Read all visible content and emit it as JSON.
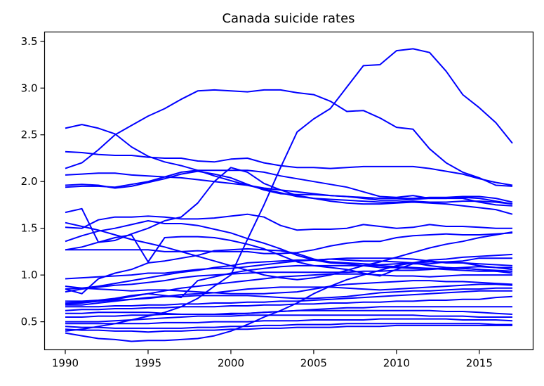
{
  "chart_data": {
    "type": "line",
    "title": "Canada suicide rates",
    "xlabel": "",
    "ylabel": "",
    "xlim": [
      1988.75,
      2018.25
    ],
    "ylim": [
      0.2,
      3.6
    ],
    "x_ticks": [
      1990,
      1995,
      2000,
      2005,
      2010,
      2015
    ],
    "y_ticks": [
      0.5,
      1.0,
      1.5,
      2.0,
      2.5,
      3.0,
      3.5
    ],
    "y_tick_labels": [
      "0.5",
      "1.0",
      "1.5",
      "2.0",
      "2.5",
      "3.0",
      "3.5"
    ],
    "grid": false,
    "line_color": "#0000ff",
    "x": [
      1990,
      1991,
      1992,
      1993,
      1994,
      1995,
      1996,
      1997,
      1998,
      1999,
      2000,
      2001,
      2002,
      2003,
      2004,
      2005,
      2006,
      2007,
      2008,
      2009,
      2010,
      2011,
      2012,
      2013,
      2014,
      2015,
      2016,
      2017
    ],
    "series": [
      {
        "values": [
          2.14,
          2.2,
          2.34,
          2.5,
          2.6,
          2.7,
          2.78,
          2.88,
          2.97,
          2.98,
          2.97,
          2.96,
          2.98,
          2.98,
          2.95,
          2.93,
          2.86,
          2.75,
          2.76,
          2.68,
          2.58,
          2.56,
          2.35,
          2.2,
          2.1,
          2.04,
          1.96,
          1.95
        ]
      },
      {
        "values": [
          0.4,
          0.42,
          0.45,
          0.48,
          0.52,
          0.56,
          0.6,
          0.66,
          0.75,
          0.88,
          1.0,
          1.38,
          1.75,
          2.15,
          2.53,
          2.67,
          2.78,
          3.01,
          3.24,
          3.25,
          3.4,
          3.42,
          3.38,
          3.18,
          2.93,
          2.79,
          2.63,
          2.41
        ]
      },
      {
        "values": [
          2.57,
          2.61,
          2.57,
          2.51,
          2.37,
          2.27,
          2.21,
          2.17,
          2.12,
          2.06,
          2.01,
          1.96,
          1.92,
          1.88,
          1.84,
          1.82,
          1.79,
          1.77,
          1.76,
          1.76,
          1.77,
          1.78,
          1.77,
          1.76,
          1.74,
          1.72,
          1.7,
          1.65
        ]
      },
      {
        "values": [
          2.32,
          2.31,
          2.29,
          2.28,
          2.28,
          2.26,
          2.25,
          2.25,
          2.22,
          2.21,
          2.24,
          2.25,
          2.2,
          2.17,
          2.15,
          2.15,
          2.14,
          2.15,
          2.16,
          2.16,
          2.16,
          2.16,
          2.14,
          2.11,
          2.08,
          2.03,
          1.99,
          1.96
        ]
      },
      {
        "values": [
          2.07,
          2.08,
          2.09,
          2.09,
          2.07,
          2.06,
          2.05,
          2.04,
          2.02,
          2.0,
          1.98,
          1.96,
          1.93,
          1.91,
          1.89,
          1.87,
          1.85,
          1.84,
          1.83,
          1.82,
          1.82,
          1.82,
          1.83,
          1.83,
          1.84,
          1.84,
          1.82,
          1.78
        ]
      },
      {
        "values": [
          1.96,
          1.97,
          1.96,
          1.93,
          1.95,
          1.99,
          2.03,
          2.08,
          2.11,
          2.08,
          2.04,
          1.97,
          1.91,
          1.87,
          1.86,
          1.86,
          1.85,
          1.84,
          1.82,
          1.8,
          1.8,
          1.81,
          1.82,
          1.82,
          1.83,
          1.82,
          1.79,
          1.76
        ]
      },
      {
        "values": [
          1.94,
          1.95,
          1.95,
          1.94,
          1.97,
          2.0,
          2.05,
          2.1,
          2.12,
          2.12,
          2.12,
          2.12,
          2.1,
          2.06,
          2.03,
          2.0,
          1.97,
          1.94,
          1.89,
          1.84,
          1.83,
          1.85,
          1.82,
          1.82,
          1.82,
          1.78,
          1.75,
          1.74
        ]
      },
      {
        "values": [
          1.67,
          1.71,
          1.35,
          1.37,
          1.44,
          1.5,
          1.58,
          1.62,
          1.77,
          2.0,
          2.15,
          2.1,
          1.98,
          1.91,
          1.85,
          1.82,
          1.81,
          1.8,
          1.79,
          1.78,
          1.78,
          1.79,
          1.78,
          1.78,
          1.79,
          1.79,
          1.78,
          1.76
        ]
      },
      {
        "values": [
          1.51,
          1.5,
          1.59,
          1.62,
          1.62,
          1.63,
          1.62,
          1.6,
          1.6,
          1.61,
          1.63,
          1.65,
          1.62,
          1.53,
          1.48,
          1.49,
          1.49,
          1.5,
          1.54,
          1.52,
          1.5,
          1.51,
          1.54,
          1.52,
          1.52,
          1.51,
          1.5,
          1.5
        ]
      },
      {
        "values": [
          1.56,
          1.52,
          1.48,
          1.43,
          1.38,
          1.34,
          1.3,
          1.25,
          1.2,
          1.15,
          1.1,
          1.05,
          1.0,
          0.97,
          0.95,
          0.97,
          1.0,
          1.05,
          1.1,
          1.14,
          1.19,
          1.24,
          1.29,
          1.33,
          1.36,
          1.4,
          1.43,
          1.46
        ]
      },
      {
        "values": [
          1.27,
          1.27,
          1.27,
          1.27,
          1.27,
          1.27,
          1.25,
          1.25,
          1.26,
          1.25,
          1.25,
          1.25,
          1.23,
          1.23,
          1.24,
          1.27,
          1.31,
          1.34,
          1.36,
          1.36,
          1.4,
          1.42,
          1.43,
          1.44,
          1.43,
          1.43,
          1.44,
          1.45
        ]
      },
      {
        "values": [
          1.27,
          1.3,
          1.35,
          1.4,
          1.43,
          1.14,
          1.4,
          1.41,
          1.41,
          1.4,
          1.37,
          1.33,
          1.28,
          1.21,
          1.14,
          1.1,
          1.08,
          1.06,
          1.02,
          0.99,
          1.06,
          1.12,
          1.12,
          1.14,
          1.13,
          1.1,
          1.08,
          1.06
        ]
      },
      {
        "values": [
          1.36,
          1.42,
          1.47,
          1.5,
          1.54,
          1.58,
          1.55,
          1.55,
          1.53,
          1.49,
          1.45,
          1.39,
          1.34,
          1.28,
          1.21,
          1.16,
          1.13,
          1.12,
          1.1,
          1.08,
          1.08,
          1.07,
          1.07,
          1.07,
          1.08,
          1.09,
          1.08,
          1.08
        ]
      },
      {
        "values": [
          0.85,
          0.8,
          0.96,
          1.02,
          1.06,
          1.13,
          1.15,
          1.18,
          1.21,
          1.26,
          1.27,
          1.28,
          1.27,
          1.26,
          1.23,
          1.17,
          1.14,
          1.13,
          1.12,
          1.11,
          1.12,
          1.13,
          1.14,
          1.14,
          1.15,
          1.18,
          1.18,
          1.18
        ]
      },
      {
        "values": [
          0.96,
          0.97,
          0.98,
          0.99,
          1.0,
          1.02,
          1.02,
          1.04,
          1.06,
          1.07,
          1.07,
          1.09,
          1.11,
          1.13,
          1.15,
          1.16,
          1.17,
          1.18,
          1.18,
          1.18,
          1.18,
          1.17,
          1.15,
          1.13,
          1.13,
          1.12,
          1.11,
          1.1
        ]
      },
      {
        "values": [
          0.85,
          0.86,
          0.88,
          0.91,
          0.94,
          0.97,
          1.0,
          1.03,
          1.05,
          1.08,
          1.1,
          1.13,
          1.14,
          1.15,
          1.16,
          1.16,
          1.17,
          1.16,
          1.15,
          1.15,
          1.14,
          1.13,
          1.1,
          1.08,
          1.07,
          1.06,
          1.05,
          1.04
        ]
      },
      {
        "values": [
          0.82,
          0.85,
          0.87,
          0.89,
          0.9,
          0.92,
          0.94,
          0.97,
          0.99,
          1.0,
          1.01,
          1.02,
          1.03,
          1.03,
          1.03,
          1.03,
          1.03,
          1.03,
          1.04,
          1.04,
          1.05,
          1.05,
          1.06,
          1.07,
          1.07,
          1.06,
          1.04,
          1.02
        ]
      },
      {
        "values": [
          0.72,
          0.72,
          0.73,
          0.75,
          0.78,
          0.8,
          0.83,
          0.86,
          0.88,
          0.9,
          0.92,
          0.94,
          0.96,
          0.98,
          0.99,
          1.0,
          1.01,
          1.01,
          1.01,
          1.0,
          0.99,
          0.99,
          0.98,
          0.99,
          1.0,
          1.0,
          1.0,
          1.0
        ]
      },
      {
        "values": [
          0.88,
          0.86,
          0.85,
          0.84,
          0.83,
          0.84,
          0.84,
          0.83,
          0.82,
          0.81,
          0.8,
          0.8,
          0.8,
          0.81,
          0.82,
          0.85,
          0.88,
          0.9,
          0.91,
          0.92,
          0.93,
          0.94,
          0.94,
          0.93,
          0.93,
          0.92,
          0.91,
          0.9
        ]
      },
      {
        "values": [
          0.68,
          0.68,
          0.7,
          0.72,
          0.74,
          0.75,
          0.77,
          0.79,
          0.8,
          0.81,
          0.83,
          0.85,
          0.86,
          0.87,
          0.87,
          0.87,
          0.87,
          0.86,
          0.85,
          0.84,
          0.85,
          0.86,
          0.87,
          0.88,
          0.89,
          0.9,
          0.9,
          0.89
        ]
      },
      {
        "values": [
          0.7,
          0.71,
          0.72,
          0.73,
          0.74,
          0.76,
          0.77,
          0.77,
          0.78,
          0.78,
          0.78,
          0.78,
          0.77,
          0.76,
          0.75,
          0.75,
          0.76,
          0.77,
          0.79,
          0.81,
          0.82,
          0.83,
          0.83,
          0.84,
          0.85,
          0.85,
          0.86,
          0.86
        ]
      },
      {
        "values": [
          0.66,
          0.66,
          0.66,
          0.67,
          0.67,
          0.68,
          0.68,
          0.69,
          0.69,
          0.7,
          0.7,
          0.71,
          0.71,
          0.72,
          0.72,
          0.73,
          0.74,
          0.75,
          0.76,
          0.77,
          0.78,
          0.79,
          0.8,
          0.81,
          0.82,
          0.83,
          0.83,
          0.83
        ]
      },
      {
        "values": [
          0.62,
          0.63,
          0.63,
          0.64,
          0.64,
          0.65,
          0.65,
          0.66,
          0.66,
          0.66,
          0.67,
          0.67,
          0.68,
          0.68,
          0.69,
          0.69,
          0.7,
          0.7,
          0.71,
          0.71,
          0.72,
          0.72,
          0.73,
          0.73,
          0.74,
          0.74,
          0.76,
          0.77
        ]
      },
      {
        "values": [
          0.59,
          0.59,
          0.6,
          0.6,
          0.6,
          0.6,
          0.59,
          0.58,
          0.58,
          0.58,
          0.58,
          0.59,
          0.6,
          0.61,
          0.62,
          0.63,
          0.64,
          0.65,
          0.65,
          0.66,
          0.66,
          0.66,
          0.66,
          0.66,
          0.66,
          0.66,
          0.66,
          0.66
        ]
      },
      {
        "values": [
          0.55,
          0.55,
          0.56,
          0.56,
          0.57,
          0.57,
          0.58,
          0.58,
          0.58,
          0.58,
          0.59,
          0.59,
          0.6,
          0.61,
          0.62,
          0.62,
          0.62,
          0.62,
          0.62,
          0.62,
          0.62,
          0.62,
          0.62,
          0.61,
          0.61,
          0.6,
          0.59,
          0.58
        ]
      },
      {
        "values": [
          0.5,
          0.5,
          0.5,
          0.51,
          0.52,
          0.53,
          0.54,
          0.55,
          0.56,
          0.56,
          0.56,
          0.57,
          0.57,
          0.57,
          0.57,
          0.57,
          0.57,
          0.57,
          0.57,
          0.57,
          0.57,
          0.57,
          0.56,
          0.56,
          0.56,
          0.55,
          0.55,
          0.55
        ]
      },
      {
        "values": [
          0.48,
          0.48,
          0.48,
          0.48,
          0.48,
          0.48,
          0.49,
          0.49,
          0.49,
          0.5,
          0.5,
          0.5,
          0.51,
          0.51,
          0.51,
          0.52,
          0.52,
          0.52,
          0.52,
          0.53,
          0.53,
          0.53,
          0.53,
          0.53,
          0.52,
          0.52,
          0.52,
          0.51
        ]
      },
      {
        "values": [
          0.45,
          0.44,
          0.44,
          0.43,
          0.43,
          0.43,
          0.43,
          0.43,
          0.44,
          0.44,
          0.45,
          0.45,
          0.46,
          0.46,
          0.47,
          0.47,
          0.47,
          0.48,
          0.48,
          0.48,
          0.48,
          0.48,
          0.48,
          0.48,
          0.48,
          0.48,
          0.47,
          0.47
        ]
      },
      {
        "values": [
          0.42,
          0.41,
          0.41,
          0.4,
          0.4,
          0.39,
          0.4,
          0.4,
          0.41,
          0.41,
          0.42,
          0.42,
          0.43,
          0.43,
          0.44,
          0.44,
          0.44,
          0.45,
          0.45,
          0.45,
          0.46,
          0.46,
          0.46,
          0.46,
          0.46,
          0.46,
          0.46,
          0.46
        ]
      },
      {
        "values": [
          0.38,
          0.35,
          0.32,
          0.31,
          0.29,
          0.3,
          0.3,
          0.31,
          0.32,
          0.35,
          0.4,
          0.47,
          0.55,
          0.62,
          0.7,
          0.8,
          0.88,
          0.95,
          1.0,
          1.05,
          1.1,
          1.13,
          1.16,
          1.17,
          1.19,
          1.2,
          1.21,
          1.22
        ]
      },
      {
        "values": [
          0.69,
          0.7,
          0.72,
          0.74,
          0.77,
          0.8,
          0.78,
          0.76,
          0.94,
          0.98,
          1.02,
          1.05,
          1.07,
          1.09,
          1.1,
          1.1,
          1.1,
          1.1,
          1.1,
          1.1,
          1.09,
          1.08,
          1.07,
          1.06,
          1.05,
          1.04,
          1.04,
          1.04
        ]
      }
    ]
  }
}
